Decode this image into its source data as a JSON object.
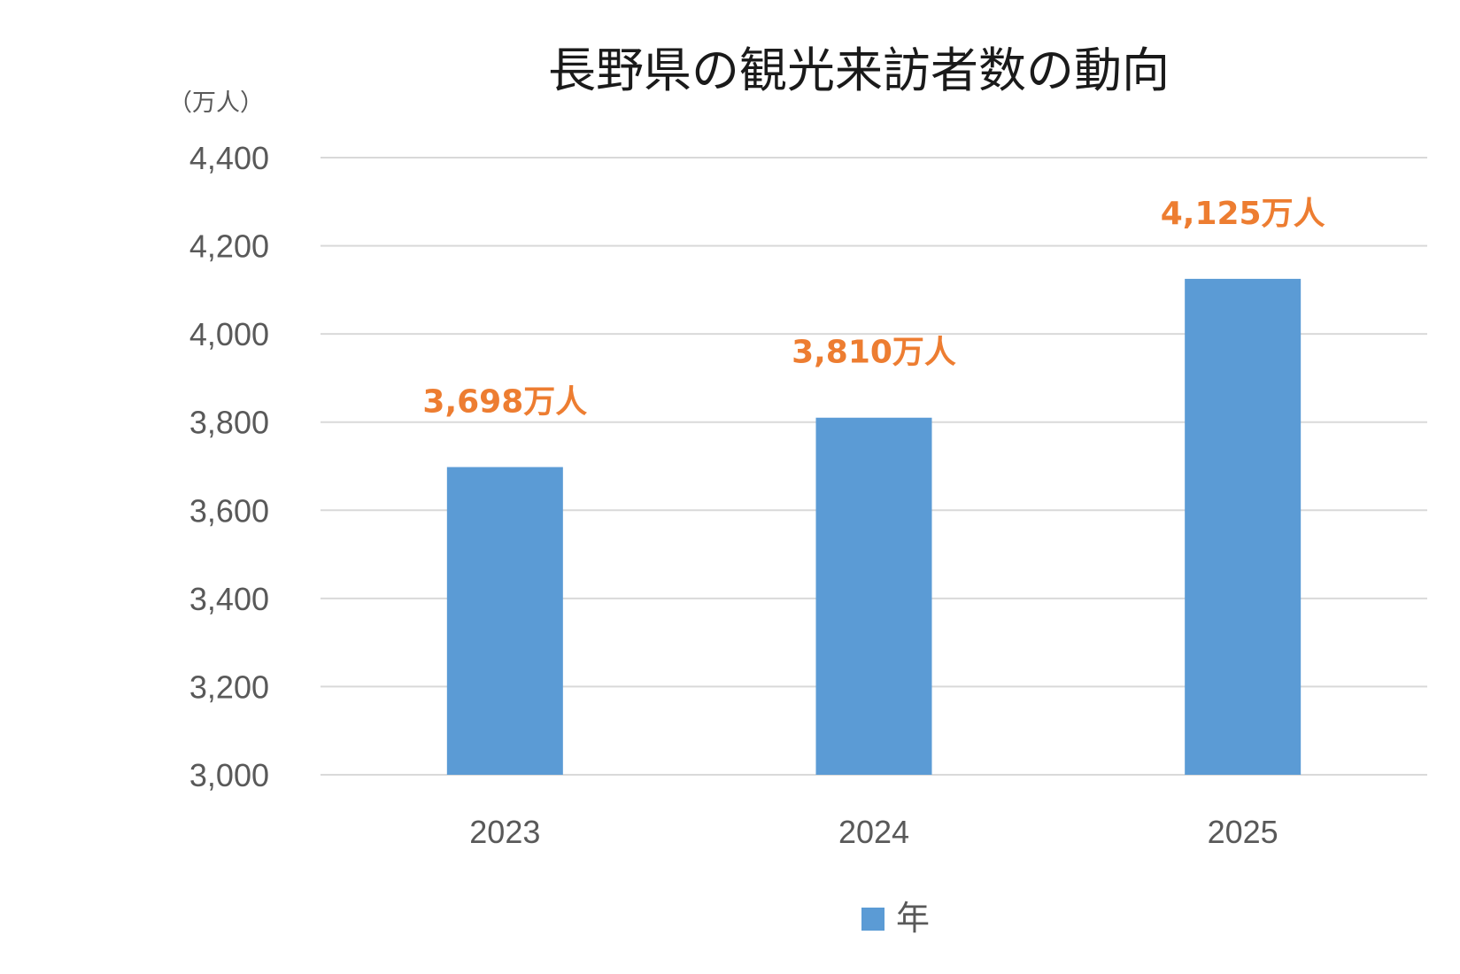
{
  "chart_data": {
    "type": "bar",
    "title": "長野県の観光来訪者数の動向",
    "unit_label": "（万人）",
    "categories": [
      "2023",
      "2024",
      "2025"
    ],
    "series": [
      {
        "name": "年",
        "values": [
          3698,
          3810,
          4125
        ],
        "color": "#5b9bd5"
      }
    ],
    "data_labels": [
      "3,698万人",
      "3,810万人",
      "4,125万人"
    ],
    "data_label_color": "#ed7d31",
    "ylim": [
      3000,
      4400
    ],
    "yticks": [
      3000,
      3200,
      3400,
      3600,
      3800,
      4000,
      4200,
      4400
    ],
    "ytick_labels": [
      "3,000",
      "3,200",
      "3,400",
      "3,600",
      "3,800",
      "4,000",
      "4,200",
      "4,400"
    ],
    "grid": true,
    "legend_position": "bottom"
  }
}
